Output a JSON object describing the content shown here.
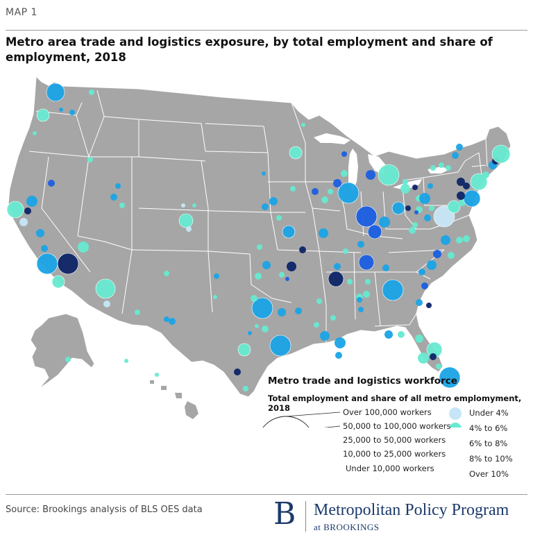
{
  "header": {
    "map_label": "MAP 1",
    "title": "Metro area trade and logistics exposure, by total employment and share of employment, 2018"
  },
  "legend": {
    "title": "Metro trade and logistics workforce",
    "subtitle": "Total employment and share of all metro emplomyment, 2018",
    "size_classes": [
      {
        "label": "Over 100,000 workers"
      },
      {
        "label": "50,000 to 100,000 workers"
      },
      {
        "label": "25,000 to 50,000 workers"
      },
      {
        "label": "10,000 to 25,000 workers"
      },
      {
        "label": "Under 10,000 workers"
      }
    ],
    "color_classes": [
      {
        "label": "Under 4%",
        "color": "#c6e6f7"
      },
      {
        "label": "4% to 6%",
        "color": "#66ead0"
      },
      {
        "label": "6% to 8%",
        "color": "#1aa3e6"
      },
      {
        "label": "8% to 10%",
        "color": "#1a5ee0"
      },
      {
        "label": "Over 10%",
        "color": "#0d2466"
      }
    ]
  },
  "map": {
    "land_color": "#a6a6a6",
    "border_color": "#ffffff"
  },
  "footer": {
    "source": "Source: Brookings analysis of BLS OES data",
    "logo_letter": "B",
    "logo_name": "Metropolitan Policy Program",
    "logo_sub": "at BROOKINGS"
  }
}
